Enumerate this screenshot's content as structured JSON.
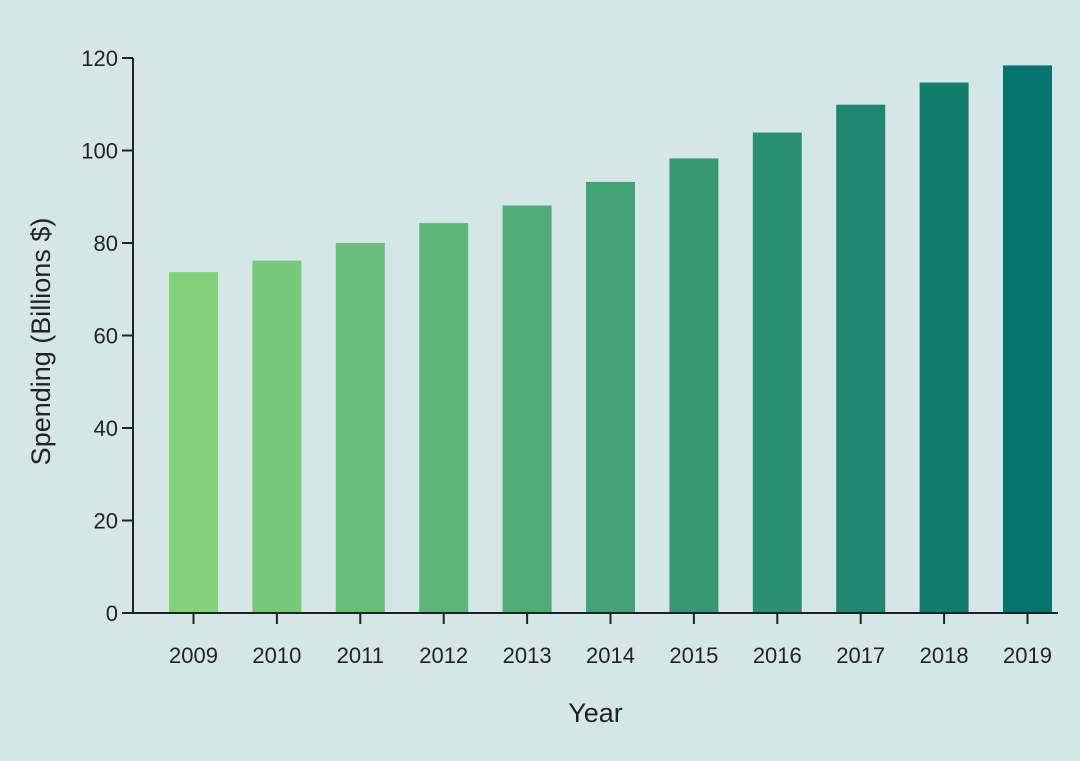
{
  "chart_data": {
    "type": "bar",
    "title": "",
    "xlabel": "Year",
    "ylabel": "Spending (Billions $)",
    "categories": [
      "2009",
      "2010",
      "2011",
      "2012",
      "2013",
      "2014",
      "2015",
      "2016",
      "2017",
      "2018",
      "2019"
    ],
    "values": [
      73.7,
      76.2,
      80.0,
      84.3,
      88.1,
      93.2,
      98.3,
      103.9,
      109.9,
      114.7,
      118.4
    ],
    "ylim": [
      0,
      120
    ],
    "yticks": [
      0,
      20,
      40,
      60,
      80,
      100,
      120
    ],
    "grid": false,
    "legend": "none",
    "colors": {
      "background": "#d5e6e6",
      "axis": "#1f2323",
      "bar_start": "#82d27c",
      "bar_end": "#05736e"
    }
  }
}
